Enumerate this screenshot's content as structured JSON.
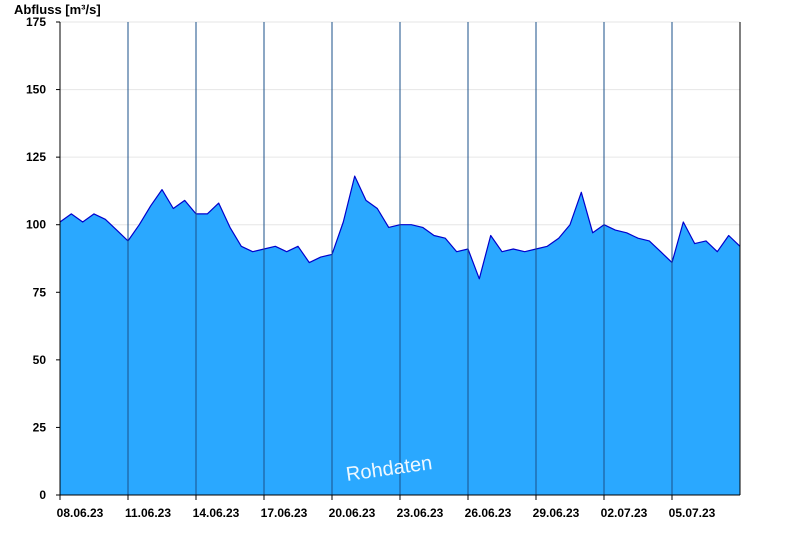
{
  "chart_data": {
    "type": "area",
    "ylabel": "Abfluss [m³/s]",
    "ylim": [
      0,
      175
    ],
    "yticks": [
      0,
      25,
      50,
      75,
      100,
      125,
      150,
      175
    ],
    "xlim": [
      "08.06.23",
      "08.07.23"
    ],
    "xtick_labels": [
      "08.06.23",
      "11.06.23",
      "14.06.23",
      "17.06.23",
      "20.06.23",
      "23.06.23",
      "26.06.23",
      "29.06.23",
      "02.07.23",
      "05.07.23"
    ],
    "grid": "horizontal",
    "watermark": "Rohdaten",
    "fill_color": "#2aa8ff",
    "line_color": "#0000cc",
    "day_separator_color": "#1a4f88",
    "series": [
      {
        "x": [
          "08.06.23",
          "08.06.23 12:00",
          "09.06.23",
          "09.06.23 12:00",
          "10.06.23",
          "10.06.23 12:00",
          "11.06.23",
          "11.06.23 12:00",
          "12.06.23",
          "12.06.23 12:00",
          "13.06.23",
          "13.06.23 12:00",
          "14.06.23",
          "14.06.23 12:00",
          "15.06.23",
          "15.06.23 12:00",
          "16.06.23",
          "16.06.23 12:00",
          "17.06.23",
          "17.06.23 12:00",
          "18.06.23",
          "18.06.23 12:00",
          "19.06.23",
          "19.06.23 12:00",
          "20.06.23",
          "20.06.23 12:00",
          "21.06.23",
          "21.06.23 12:00",
          "22.06.23",
          "22.06.23 12:00",
          "23.06.23",
          "23.06.23 12:00",
          "24.06.23",
          "24.06.23 12:00",
          "25.06.23",
          "25.06.23 12:00",
          "26.06.23",
          "26.06.23 12:00",
          "27.06.23",
          "27.06.23 12:00",
          "28.06.23",
          "28.06.23 12:00",
          "29.06.23",
          "29.06.23 12:00",
          "30.06.23",
          "30.06.23 12:00",
          "01.07.23",
          "01.07.23 12:00",
          "02.07.23",
          "02.07.23 12:00",
          "03.07.23",
          "03.07.23 12:00",
          "04.07.23",
          "04.07.23 12:00",
          "05.07.23",
          "05.07.23 12:00",
          "06.07.23",
          "06.07.23 12:00",
          "07.07.23",
          "07.07.23 12:00",
          "08.07.23"
        ],
        "y": [
          101,
          104,
          101,
          104,
          102,
          98,
          94,
          100,
          107,
          113,
          106,
          109,
          104,
          104,
          108,
          99,
          92,
          90,
          91,
          92,
          90,
          92,
          86,
          88,
          89,
          101,
          118,
          109,
          106,
          99,
          100,
          100,
          99,
          96,
          95,
          90,
          91,
          80,
          96,
          90,
          91,
          90,
          91,
          92,
          95,
          100,
          112,
          97,
          100,
          98,
          97,
          95,
          94,
          90,
          86,
          101,
          93,
          94,
          90,
          96,
          92
        ]
      }
    ]
  }
}
